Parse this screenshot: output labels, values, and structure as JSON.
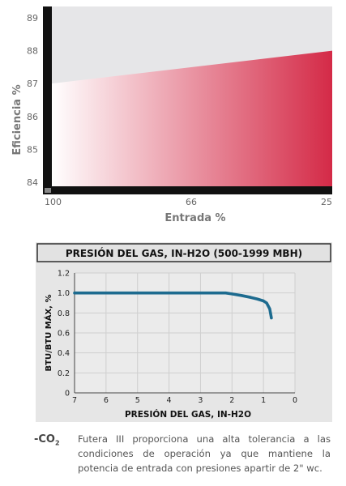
{
  "chart_data": [
    {
      "type": "area",
      "title": "",
      "xlabel": "Entrada %",
      "ylabel": "Eficiencia %",
      "x_ticks": [
        "100",
        "66",
        "25"
      ],
      "y_ticks": [
        "84",
        "85",
        "86",
        "87",
        "88",
        "89"
      ],
      "ylim": [
        84,
        89.5
      ],
      "x": [
        100,
        25
      ],
      "values": [
        87.0,
        88.0
      ],
      "colors": {
        "fill_low": "#ffffff",
        "fill_high": "#d42a47",
        "background": "#e6e6e8",
        "axis": "#111111"
      }
    },
    {
      "type": "line",
      "title": "PRESIÓN DEL GAS, IN-H2O (500-1999 MBH)",
      "xlabel": "PRESIÓN DEL GAS, IN-H2O",
      "ylabel": "BTU/BTU MÁX, %",
      "x_ticks": [
        "7",
        "6",
        "5",
        "4",
        "3",
        "2",
        "1",
        "0"
      ],
      "y_ticks": [
        "0",
        "0.2",
        "0.4",
        "0.6",
        "0.8",
        "1.0",
        "1.2"
      ],
      "xlim": [
        7,
        0
      ],
      "ylim": [
        0,
        1.2
      ],
      "grid": true,
      "x": [
        7,
        6,
        5,
        4,
        3,
        2.5,
        2.2,
        2.0,
        1.7,
        1.4,
        1.2,
        1.0,
        0.9,
        0.8,
        0.75
      ],
      "values": [
        1.0,
        1.0,
        1.0,
        1.0,
        1.0,
        1.0,
        1.0,
        0.99,
        0.975,
        0.955,
        0.94,
        0.92,
        0.9,
        0.84,
        0.75
      ],
      "colors": {
        "line": "#1d6b8f",
        "panel": "#e9e9e9",
        "title_bar": "#e2e2e2",
        "grid": "#cccccc"
      }
    }
  ],
  "footnote": {
    "label": "-CO",
    "label_sub": "2",
    "text": "Futera III proporciona una alta tolerancia a las condiciones de operación ya que mantiene la potencia de entrada con presiones apartir de 2\" wc."
  }
}
